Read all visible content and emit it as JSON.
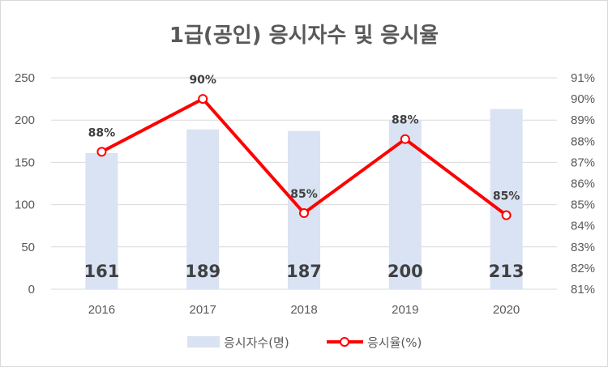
{
  "chart_data": {
    "type": "bar",
    "title": "1급(공인) 응시자수 및 응시율",
    "categories": [
      "2016",
      "2017",
      "2018",
      "2019",
      "2020"
    ],
    "series": [
      {
        "name": "응시자수(명)",
        "chart_type": "bar",
        "axis": "left",
        "values": [
          161,
          189,
          187,
          200,
          213
        ],
        "color": "#dae3f3"
      },
      {
        "name": "응시율(%)",
        "chart_type": "line",
        "axis": "right",
        "values": [
          87.5,
          90.0,
          84.6,
          88.1,
          84.5
        ],
        "labels": [
          "88%",
          "90%",
          "85%",
          "88%",
          "85%"
        ],
        "color": "#ff0000"
      }
    ],
    "y_left": {
      "range": [
        0,
        250
      ],
      "ticks": [
        "0",
        "50",
        "100",
        "150",
        "200",
        "250"
      ]
    },
    "y_right": {
      "range": [
        81,
        91
      ],
      "ticks": [
        "81%",
        "82%",
        "83%",
        "84%",
        "85%",
        "86%",
        "87%",
        "88%",
        "89%",
        "90%",
        "91%"
      ]
    },
    "grid": true,
    "legend_position": "bottom"
  }
}
